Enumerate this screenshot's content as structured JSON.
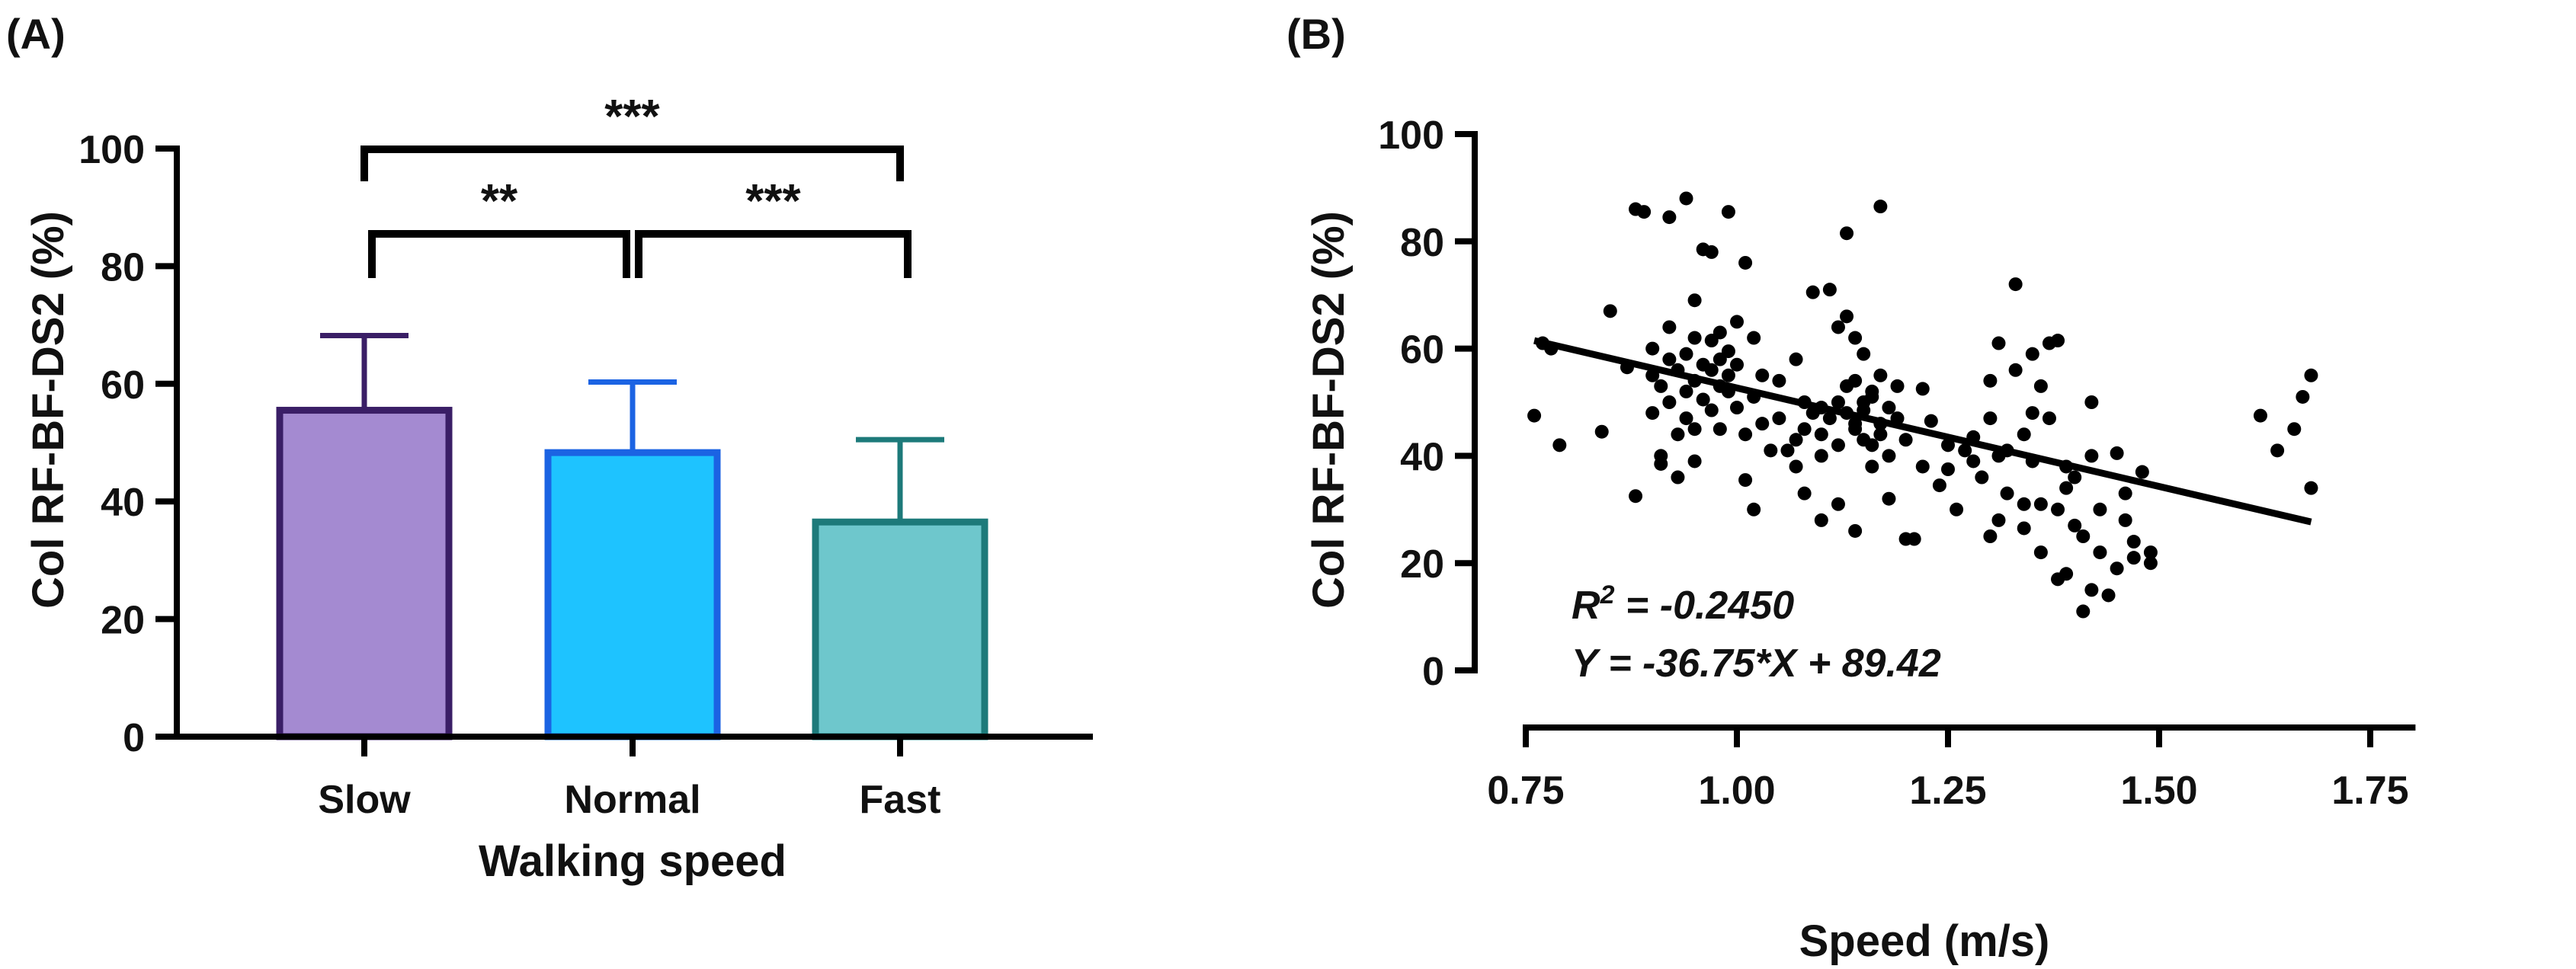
{
  "chart_data": [
    {
      "panel_label": "(A)",
      "type": "bar",
      "title": "",
      "xlabel": "Walking speed",
      "ylabel": "Col RF-BF-DS2 (%)",
      "ylim": [
        0,
        100
      ],
      "yticks": [
        "0",
        "20",
        "40",
        "60",
        "80",
        "100"
      ],
      "categories": [
        "Slow",
        "Normal",
        "Fast"
      ],
      "values": [
        55.5,
        48.3,
        36.5
      ],
      "errors": [
        12.7,
        12.0,
        14.0
      ],
      "fill_colors": [
        "#a48ad1",
        "#1ec3ff",
        "#6ec7cc"
      ],
      "edge_colors": [
        "#3a1e66",
        "#1b63e3",
        "#1d7a7a"
      ],
      "significance": [
        {
          "from": "Slow",
          "to": "Fast",
          "label": "***",
          "level": 1
        },
        {
          "from": "Slow",
          "to": "Normal",
          "label": "**",
          "level": 0
        },
        {
          "from": "Normal",
          "to": "Fast",
          "label": "***",
          "level": 0
        }
      ]
    },
    {
      "panel_label": "(B)",
      "type": "scatter",
      "title": "",
      "xlabel": "Speed (m/s)",
      "ylabel": "Col RF-BF-DS2 (%)",
      "xlim": [
        0.75,
        1.8
      ],
      "ylim": [
        0,
        100
      ],
      "xticks": [
        "0.75",
        "1.00",
        "1.25",
        "1.50",
        "1.75"
      ],
      "yticks": [
        "0",
        "20",
        "40",
        "60",
        "80",
        "100"
      ],
      "annotation_r2_prefix": "R",
      "annotation_r2_sup": "2",
      "annotation_r2_value": " = -0.2450",
      "annotation_eq": "Y = -36.75*X + 89.42",
      "fit": {
        "slope": -36.75,
        "intercept": 89.42,
        "x_range": [
          0.76,
          1.68
        ]
      },
      "point_color": "#000000",
      "points": [
        [
          0.76,
          47.5
        ],
        [
          0.77,
          61
        ],
        [
          0.78,
          60
        ],
        [
          0.79,
          42
        ],
        [
          0.84,
          44.5
        ],
        [
          0.85,
          67
        ],
        [
          0.87,
          56.5
        ],
        [
          0.88,
          86
        ],
        [
          0.88,
          32.5
        ],
        [
          0.89,
          85.5
        ],
        [
          0.9,
          60
        ],
        [
          0.9,
          55
        ],
        [
          0.9,
          48
        ],
        [
          0.91,
          53
        ],
        [
          0.91,
          40
        ],
        [
          0.91,
          38.5
        ],
        [
          0.92,
          64
        ],
        [
          0.92,
          58
        ],
        [
          0.92,
          50
        ],
        [
          0.92,
          84.5
        ],
        [
          0.93,
          44
        ],
        [
          0.93,
          56
        ],
        [
          0.93,
          36
        ],
        [
          0.94,
          88
        ],
        [
          0.94,
          59
        ],
        [
          0.94,
          52
        ],
        [
          0.94,
          47
        ],
        [
          0.95,
          69
        ],
        [
          0.95,
          62
        ],
        [
          0.95,
          54
        ],
        [
          0.95,
          45
        ],
        [
          0.95,
          39
        ],
        [
          0.96,
          78.5
        ],
        [
          0.96,
          57
        ],
        [
          0.96,
          50.5
        ],
        [
          0.97,
          61.5
        ],
        [
          0.97,
          56
        ],
        [
          0.97,
          48.5
        ],
        [
          0.97,
          78
        ],
        [
          0.98,
          63
        ],
        [
          0.98,
          58
        ],
        [
          0.98,
          53
        ],
        [
          0.98,
          45
        ],
        [
          0.99,
          85.5
        ],
        [
          0.99,
          59.5
        ],
        [
          0.99,
          55
        ],
        [
          0.99,
          52
        ],
        [
          1.0,
          49
        ],
        [
          1.0,
          57
        ],
        [
          1.0,
          65
        ],
        [
          1.01,
          44
        ],
        [
          1.01,
          35.5
        ],
        [
          1.01,
          76
        ],
        [
          1.02,
          51
        ],
        [
          1.02,
          62
        ],
        [
          1.02,
          30
        ],
        [
          1.03,
          46
        ],
        [
          1.03,
          55
        ],
        [
          1.04,
          41
        ],
        [
          1.05,
          54
        ],
        [
          1.05,
          47
        ],
        [
          1.06,
          41
        ],
        [
          1.07,
          43
        ],
        [
          1.07,
          38
        ],
        [
          1.07,
          58
        ],
        [
          1.08,
          45
        ],
        [
          1.08,
          33
        ],
        [
          1.08,
          50
        ],
        [
          1.09,
          48
        ],
        [
          1.09,
          70.5
        ],
        [
          1.1,
          49
        ],
        [
          1.1,
          44
        ],
        [
          1.1,
          40
        ],
        [
          1.1,
          28
        ],
        [
          1.11,
          71
        ],
        [
          1.11,
          47
        ],
        [
          1.12,
          50
        ],
        [
          1.12,
          42
        ],
        [
          1.12,
          31
        ],
        [
          1.12,
          64
        ],
        [
          1.13,
          48
        ],
        [
          1.13,
          66
        ],
        [
          1.13,
          53
        ],
        [
          1.13,
          81.5
        ],
        [
          1.14,
          46
        ],
        [
          1.14,
          45
        ],
        [
          1.14,
          54
        ],
        [
          1.14,
          26
        ],
        [
          1.14,
          62
        ],
        [
          1.15,
          50
        ],
        [
          1.15,
          43
        ],
        [
          1.15,
          59
        ],
        [
          1.15,
          48.5
        ],
        [
          1.16,
          52
        ],
        [
          1.16,
          42
        ],
        [
          1.16,
          51
        ],
        [
          1.16,
          38
        ],
        [
          1.17,
          86.5
        ],
        [
          1.17,
          46
        ],
        [
          1.17,
          55
        ],
        [
          1.17,
          44
        ],
        [
          1.18,
          49
        ],
        [
          1.18,
          40
        ],
        [
          1.18,
          32
        ],
        [
          1.19,
          47
        ],
        [
          1.19,
          53
        ],
        [
          1.2,
          43
        ],
        [
          1.2,
          24.5
        ],
        [
          1.21,
          24.5
        ],
        [
          1.22,
          52.5
        ],
        [
          1.22,
          38
        ],
        [
          1.23,
          46.5
        ],
        [
          1.24,
          34.5
        ],
        [
          1.25,
          37.5
        ],
        [
          1.25,
          42
        ],
        [
          1.26,
          30
        ],
        [
          1.27,
          41
        ],
        [
          1.28,
          39
        ],
        [
          1.28,
          43.5
        ],
        [
          1.29,
          36
        ],
        [
          1.3,
          25
        ],
        [
          1.3,
          54
        ],
        [
          1.3,
          47
        ],
        [
          1.31,
          40
        ],
        [
          1.31,
          61
        ],
        [
          1.31,
          28
        ],
        [
          1.32,
          41
        ],
        [
          1.32,
          33
        ],
        [
          1.33,
          72
        ],
        [
          1.33,
          56
        ],
        [
          1.34,
          44
        ],
        [
          1.34,
          31
        ],
        [
          1.34,
          26.5
        ],
        [
          1.35,
          59
        ],
        [
          1.35,
          48
        ],
        [
          1.35,
          39
        ],
        [
          1.36,
          53
        ],
        [
          1.36,
          31
        ],
        [
          1.36,
          22
        ],
        [
          1.37,
          61
        ],
        [
          1.37,
          47
        ],
        [
          1.38,
          61.5
        ],
        [
          1.38,
          30
        ],
        [
          1.38,
          17
        ],
        [
          1.39,
          38
        ],
        [
          1.39,
          34
        ],
        [
          1.39,
          18
        ],
        [
          1.4,
          36
        ],
        [
          1.4,
          27
        ],
        [
          1.41,
          11
        ],
        [
          1.41,
          25
        ],
        [
          1.42,
          50
        ],
        [
          1.42,
          40
        ],
        [
          1.42,
          15
        ],
        [
          1.43,
          22
        ],
        [
          1.43,
          30
        ],
        [
          1.44,
          14
        ],
        [
          1.45,
          19
        ],
        [
          1.45,
          40.5
        ],
        [
          1.46,
          33
        ],
        [
          1.46,
          28
        ],
        [
          1.47,
          24
        ],
        [
          1.47,
          21
        ],
        [
          1.48,
          37
        ],
        [
          1.49,
          22
        ],
        [
          1.49,
          20
        ],
        [
          1.62,
          47.5
        ],
        [
          1.64,
          41
        ],
        [
          1.66,
          45
        ],
        [
          1.67,
          51
        ],
        [
          1.68,
          34
        ],
        [
          1.68,
          55
        ]
      ]
    }
  ]
}
